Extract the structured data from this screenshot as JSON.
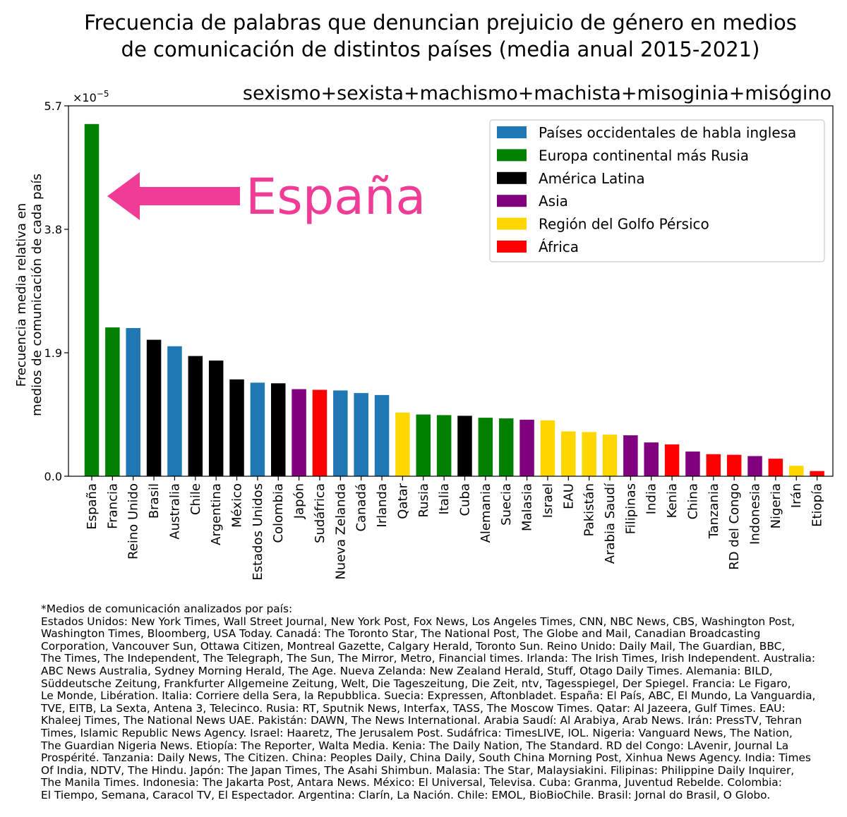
{
  "title_lines": [
    "Frecuencia de palabras que denuncian prejuicio de género en medios",
    "de comunicación de distintos países (media anual 2015-2021)"
  ],
  "subtitle": "sexismo+sexista+machismo+machista+misoginia+misógino",
  "annotation": {
    "text": "España",
    "color": "#f03c96"
  },
  "colors": {
    "Países occidentales de habla inglesa": "#1f77b4",
    "Europa continental más Rusia": "#008000",
    "América Latina": "#000000",
    "Asia": "#800080",
    "Región del Golfo Pérsico": "#ffd700",
    "África": "#ff0000"
  },
  "chart_data": {
    "type": "bar",
    "ylabel_lines": [
      "Frecuencia media relativa en",
      "medios de comunicación de cada país"
    ],
    "y_multiplier": "×10",
    "y_multiplier_exp": "−5",
    "ylim": [
      0,
      5.7
    ],
    "yticks": [
      0.0,
      1.9,
      3.8,
      5.7
    ],
    "ytick_labels": [
      "0.0",
      "1.9",
      "3.8",
      "5.7"
    ],
    "legend": {
      "position": "top-right",
      "entries": [
        "Países occidentales de habla inglesa",
        "Europa continental más Rusia",
        "América Latina",
        "Asia",
        "Región del Golfo Pérsico",
        "África"
      ]
    },
    "categories": [
      "España",
      "Francia",
      "Reino Unido",
      "Brasil",
      "Australia",
      "Chile",
      "Argentina",
      "México",
      "Estados Unidos",
      "Colombia",
      "Japón",
      "Sudáfrica",
      "Nueva Zelanda",
      "Canadá",
      "Irlanda",
      "Qatar",
      "Rusia",
      "Italia",
      "Cuba",
      "Alemania",
      "Suecia",
      "Malasia",
      "Israel",
      "EAU",
      "Pakistán",
      "Arabia Saudí",
      "Filipinas",
      "India",
      "Kenia",
      "China",
      "Tanzania",
      "RD del Congo",
      "Indonesia",
      "Nigeria",
      "Irán",
      "Etiopía"
    ],
    "values": [
      5.42,
      2.29,
      2.28,
      2.1,
      2.0,
      1.85,
      1.78,
      1.49,
      1.44,
      1.43,
      1.34,
      1.33,
      1.32,
      1.28,
      1.25,
      0.98,
      0.95,
      0.94,
      0.93,
      0.9,
      0.89,
      0.87,
      0.86,
      0.69,
      0.68,
      0.64,
      0.63,
      0.52,
      0.49,
      0.38,
      0.34,
      0.33,
      0.31,
      0.27,
      0.16,
      0.08
    ],
    "groups": [
      "Europa continental más Rusia",
      "Europa continental más Rusia",
      "Países occidentales de habla inglesa",
      "América Latina",
      "Países occidentales de habla inglesa",
      "América Latina",
      "América Latina",
      "América Latina",
      "Países occidentales de habla inglesa",
      "América Latina",
      "Asia",
      "África",
      "Países occidentales de habla inglesa",
      "Países occidentales de habla inglesa",
      "Países occidentales de habla inglesa",
      "Región del Golfo Pérsico",
      "Europa continental más Rusia",
      "Europa continental más Rusia",
      "América Latina",
      "Europa continental más Rusia",
      "Europa continental más Rusia",
      "Asia",
      "Región del Golfo Pérsico",
      "Región del Golfo Pérsico",
      "Región del Golfo Pérsico",
      "Región del Golfo Pérsico",
      "Asia",
      "Asia",
      "África",
      "Asia",
      "África",
      "África",
      "Asia",
      "África",
      "Región del Golfo Pérsico",
      "África"
    ]
  },
  "footnote": "*Medios de comunicación analizados por país:\nEstados Unidos: New York Times, Wall Street Journal, New York Post, Fox News, Los Angeles Times, CNN, NBC News, CBS, Washington Post,\nWashington Times, Bloomberg, USA Today. Canadá: The Toronto Star, The National Post, The Globe and Mail, Canadian Broadcasting\nCorporation, Vancouver Sun, Ottawa Citizen, Montreal Gazette, Calgary Herald, Toronto Sun. Reino Unido: Daily Mail, The Guardian, BBC,\nThe Times, The Independent, The Telegraph, The Sun, The Mirror, Metro, Financial times. Irlanda: The Irish Times, Irish Independent. Australia:\nABC News Australia, Sydney Morning Herald, The Age. Nueva Zelanda: New Zealand Herald, Stuff, Otago Daily Times. Alemania: BILD,\nSüddeutsche Zeitung, Frankfurter Allgemeine Zeitung, Welt, Die Tageszeitung, Die Zeit, ntv, Tagesspiegel, Der Spiegel. Francia: Le Figaro,\nLe Monde, Libération. Italia: Corriere della Sera, la Repubblica. Suecia: Expressen, Aftonbladet. España: El País, ABC, El Mundo, La Vanguardia,\nTVE, EITB, La Sexta, Antena 3, Telecinco. Rusia: RT, Sputnik News, Interfax, TASS, The Moscow Times. Qatar: Al Jazeera, Gulf Times. EAU:\nKhaleej Times, The National News UAE. Pakistán: DAWN, The News International. Arabia Saudí: Al Arabiya, Arab News. Irán: PressTV, Tehran\nTimes, Islamic Republic News Agency. Israel: Haaretz, The Jerusalem Post. Sudáfrica: TimesLIVE, IOL. Nigeria: Vanguard News, The Nation,\nThe Guardian Nigeria News. Etiopía: The Reporter, Walta Media. Kenia: The Daily Nation, The Standard. RD del Congo: LAvenir, Journal La\nProspérité. Tanzania: Daily News, The Citizen. China: Peoples Daily, China Daily, South China Morning Post, Xinhua News Agency. India: Times\nOf India, NDTV, The Hindu. Japón: The Japan Times, The Asahi Shimbun. Malasia: The Star, Malaysiakini. Filipinas: Philippine Daily Inquirer,\nThe Manila Times. Indonesia: The Jakarta Post, Antara News. México: El Universal, Televisa. Cuba: Granma, Juventud Rebelde. Colombia:\nEl Tiempo, Semana, Caracol TV, El Espectador. Argentina: Clarín, La Nación. Chile: EMOL, BioBioChile. Brasil: Jornal do Brasil, O Globo."
}
